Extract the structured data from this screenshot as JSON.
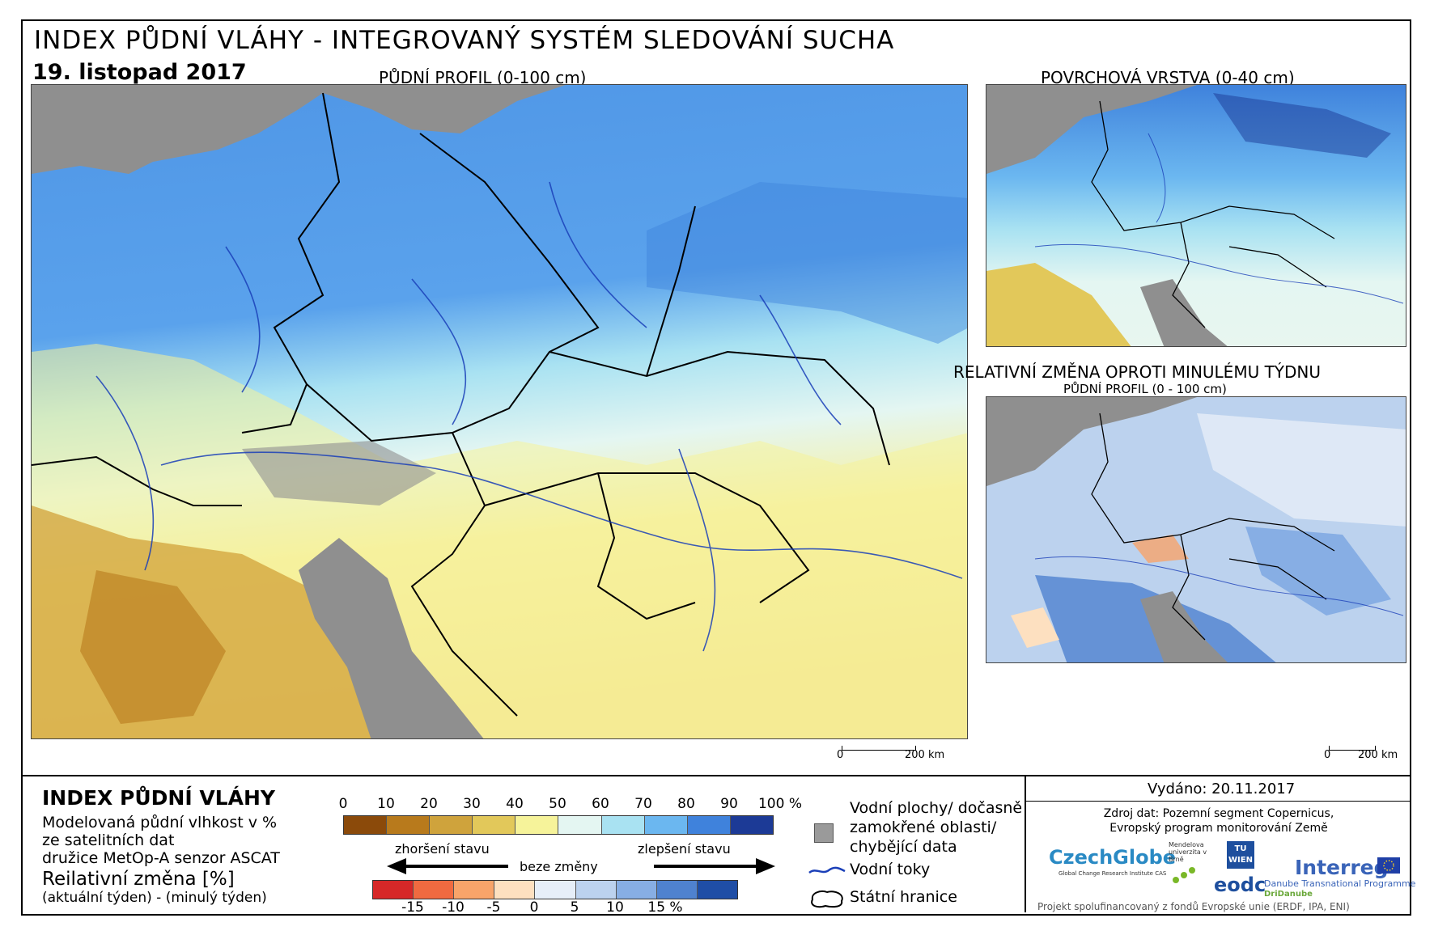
{
  "header": {
    "title": "INDEX PŮDNÍ VLÁHY - INTEGROVANÝ SYSTÉM SLEDOVÁNÍ SUCHA",
    "date": "19. listopad 2017"
  },
  "maps": {
    "main_label": "PŮDNÍ PROFIL (0-100 cm)",
    "surface_label": "POVRCHOVÁ VRSTVA (0-40 cm)",
    "change_label": "RELATIVNÍ ZMĚNA OPROTI MINULÉMU TÝDNU",
    "change_sublabel": "PŮDNÍ PROFIL (0 - 100 cm)",
    "scale_main": {
      "zero": "0",
      "end": "200 km"
    },
    "scale_small": {
      "zero": "0",
      "end": "200 km"
    }
  },
  "legend": {
    "title": "INDEX PŮDNÍ VLÁHY",
    "desc_line1": "Modelovaná půdní vlhkost v %",
    "desc_line2": "ze satelitních dat",
    "desc_line3": "družice MetOp-A senzor ASCAT",
    "change_title": "Reilativní změna [%]",
    "change_desc": "(aktuální týden) - (minulý týden)",
    "index_ticks": [
      "0",
      "10",
      "20",
      "30",
      "40",
      "50",
      "60",
      "70",
      "80",
      "90",
      "100 %"
    ],
    "index_colors": [
      "#8b4a0a",
      "#b87a1c",
      "#cfa33c",
      "#e2c85a",
      "#f6f39a",
      "#e4f6f2",
      "#a9e2f2",
      "#6bb7f0",
      "#3f82dc",
      "#1c3a96"
    ],
    "worse_label": "zhoršení stavu",
    "nochange_label": "beze změny",
    "better_label": "zlepšení stavu",
    "change_ticks": [
      "-15",
      "-10",
      "-5",
      "0",
      "5",
      "10",
      "15 %"
    ],
    "change_colors": [
      "#d62828",
      "#f06a40",
      "#f8a46a",
      "#fde0c0",
      "#e6eef8",
      "#bcd2ee",
      "#87aee4",
      "#4f82cf",
      "#1f4ea6"
    ],
    "water_areas_line1": "Vodní plochy/ dočasně",
    "water_areas_line2": "zamokřené oblasti/",
    "water_areas_line3": "chybějící data",
    "rivers_label": "Vodní toky",
    "borders_label": "Státní hranice"
  },
  "info": {
    "issued": "Vydáno: 20.11.2017",
    "source_line1": "Zdroj dat: Pozemní segment Copernicus,",
    "source_line2": "Evropský program monitorování Země",
    "footer": "Projekt spolufinancovaný z fondů Evropské unie (ERDF, IPA, ENI)",
    "logo_czechglobe": "CzechGlobe",
    "logo_czechglobe_sub": "Global Change Research Institute CAS",
    "logo_mendel": "Mendelova univerzita v Brně",
    "logo_tu": "TU WIEN",
    "logo_eodc": "eodc",
    "logo_interreg": "Interreg",
    "logo_interreg_sub1": "Danube Transnational Programme",
    "logo_interreg_sub2": "DriDanube"
  }
}
